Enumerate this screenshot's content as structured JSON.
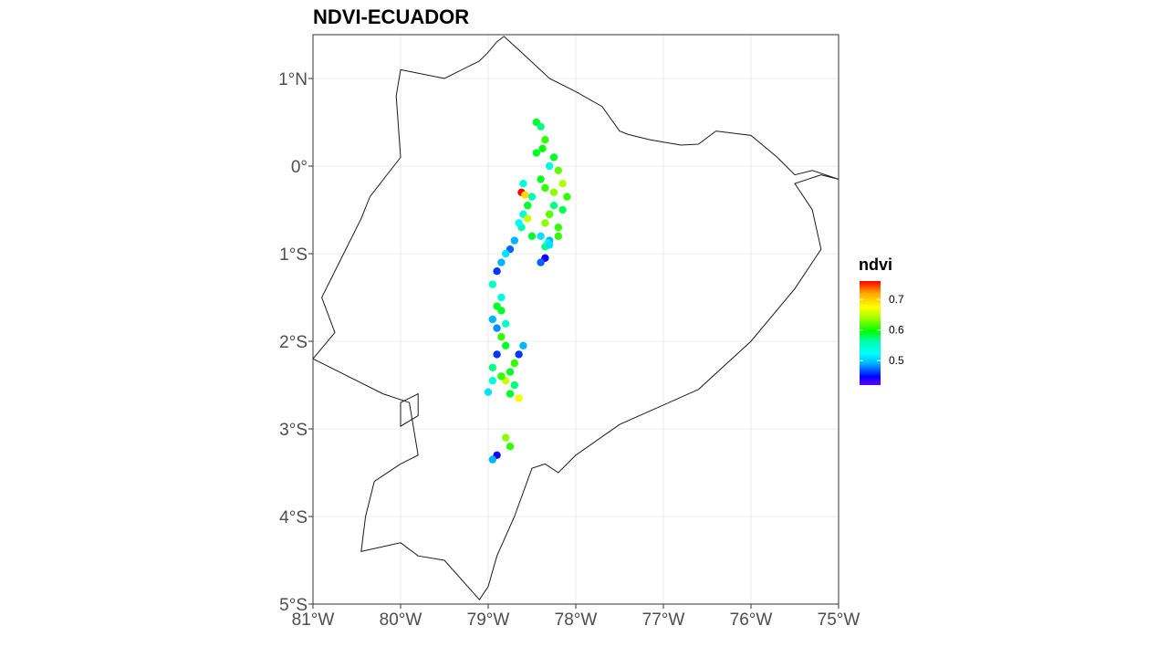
{
  "chart_data": {
    "type": "scatter",
    "title": "NDVI-ECUADOR",
    "xlabel": "",
    "ylabel": "",
    "xlim": [
      -81,
      -75
    ],
    "ylim": [
      -5,
      1.5
    ],
    "x_ticks": [
      -81,
      -80,
      -79,
      -78,
      -77,
      -76,
      -75
    ],
    "x_tick_labels": [
      "81°W",
      "80°W",
      "79°W",
      "78°W",
      "77°W",
      "76°W",
      "75°W"
    ],
    "y_ticks": [
      1,
      0,
      -1,
      -2,
      -3,
      -4,
      -5
    ],
    "y_tick_labels": [
      "1°N",
      "0°",
      "1°S",
      "2°S",
      "3°S",
      "4°S",
      "5°S"
    ],
    "grid": true,
    "legend": {
      "title": "ndvi",
      "placement": "right",
      "range": [
        0.42,
        0.76
      ],
      "breaks": [
        0.7,
        0.6,
        0.5
      ],
      "break_labels": [
        "0.7",
        "0.6",
        "0.5"
      ],
      "colors": [
        "#ff0000",
        "#ffaa00",
        "#ffff00",
        "#aaff00",
        "#00ff00",
        "#00ffaa",
        "#00ffff",
        "#00aaff",
        "#0000ff",
        "#6600ff"
      ]
    },
    "outline": [
      [
        -79.0,
        1.3
      ],
      [
        -78.9,
        1.42
      ],
      [
        -78.82,
        1.48
      ],
      [
        -78.6,
        1.28
      ],
      [
        -78.3,
        1.0
      ],
      [
        -78.0,
        0.85
      ],
      [
        -77.7,
        0.68
      ],
      [
        -77.5,
        0.4
      ],
      [
        -77.4,
        0.36
      ],
      [
        -77.15,
        0.3
      ],
      [
        -76.8,
        0.24
      ],
      [
        -76.6,
        0.25
      ],
      [
        -76.4,
        0.4
      ],
      [
        -76.0,
        0.35
      ],
      [
        -75.7,
        0.1
      ],
      [
        -75.5,
        -0.1
      ],
      [
        -75.3,
        -0.05
      ],
      [
        -75.0,
        -0.15
      ],
      [
        -75.2,
        -0.1
      ],
      [
        -75.5,
        -0.2
      ],
      [
        -75.3,
        -0.5
      ],
      [
        -75.2,
        -0.95
      ],
      [
        -75.5,
        -1.4
      ],
      [
        -76.0,
        -2.0
      ],
      [
        -76.6,
        -2.55
      ],
      [
        -77.5,
        -2.95
      ],
      [
        -78.0,
        -3.3
      ],
      [
        -78.2,
        -3.5
      ],
      [
        -78.35,
        -3.4
      ],
      [
        -78.5,
        -3.45
      ],
      [
        -78.7,
        -4.0
      ],
      [
        -78.9,
        -4.45
      ],
      [
        -79.0,
        -4.8
      ],
      [
        -79.1,
        -4.95
      ],
      [
        -79.5,
        -4.5
      ],
      [
        -79.8,
        -4.45
      ],
      [
        -80.0,
        -4.3
      ],
      [
        -80.45,
        -4.4
      ],
      [
        -80.4,
        -4.0
      ],
      [
        -80.3,
        -3.6
      ],
      [
        -80.0,
        -3.4
      ],
      [
        -79.8,
        -3.3
      ],
      [
        -79.9,
        -2.7
      ],
      [
        -80.2,
        -2.6
      ],
      [
        -80.7,
        -2.35
      ],
      [
        -81.0,
        -2.2
      ],
      [
        -80.75,
        -1.9
      ],
      [
        -80.9,
        -1.5
      ],
      [
        -80.6,
        -0.9
      ],
      [
        -80.45,
        -0.6
      ],
      [
        -80.35,
        -0.35
      ],
      [
        -80.0,
        0.1
      ],
      [
        -80.05,
        0.8
      ],
      [
        -80.0,
        1.1
      ],
      [
        -79.5,
        1.0
      ],
      [
        -79.1,
        1.2
      ],
      [
        -79.0,
        1.3
      ]
    ],
    "island": [
      [
        -80.0,
        -2.7
      ],
      [
        -79.8,
        -2.6
      ],
      [
        -79.8,
        -2.85
      ],
      [
        -80.0,
        -2.97
      ],
      [
        -80.0,
        -2.7
      ]
    ],
    "x": [
      -78.45,
      -78.4,
      -78.35,
      -78.45,
      -78.3,
      -78.38,
      -78.25,
      -78.2,
      -78.15,
      -78.1,
      -78.25,
      -78.3,
      -78.35,
      -78.55,
      -78.6,
      -78.62,
      -78.55,
      -78.5,
      -78.4,
      -78.3,
      -78.2,
      -78.3,
      -78.15,
      -78.25,
      -78.35,
      -78.4,
      -78.5,
      -78.6,
      -78.65,
      -78.7,
      -78.75,
      -78.8,
      -78.85,
      -78.9,
      -78.95,
      -78.85,
      -78.9,
      -78.95,
      -78.9,
      -78.85,
      -78.8,
      -78.9,
      -78.95,
      -78.85,
      -78.8,
      -78.75,
      -78.7,
      -78.65,
      -78.6,
      -78.7,
      -78.75,
      -78.65,
      -78.85,
      -78.95,
      -79.0,
      -78.8,
      -78.75,
      -78.9,
      -78.95,
      -78.8,
      -78.85,
      -78.35,
      -78.32,
      -78.3,
      -78.2,
      -78.35,
      -78.4,
      -78.62,
      -78.58
    ],
    "y": [
      0.5,
      0.45,
      0.3,
      0.15,
      0.0,
      0.2,
      0.1,
      -0.05,
      -0.2,
      -0.35,
      -0.45,
      -0.55,
      -0.65,
      -0.45,
      -0.55,
      -0.7,
      -0.6,
      -0.8,
      -0.8,
      -0.85,
      -0.7,
      -0.55,
      -0.5,
      -0.3,
      -0.25,
      -0.15,
      -0.35,
      -0.2,
      -0.65,
      -0.85,
      -0.95,
      -1.0,
      -1.1,
      -1.2,
      -1.35,
      -1.5,
      -1.6,
      -1.75,
      -1.85,
      -1.95,
      -2.05,
      -2.15,
      -2.3,
      -2.4,
      -2.45,
      -2.35,
      -2.25,
      -2.15,
      -2.05,
      -2.5,
      -2.6,
      -2.65,
      -2.4,
      -2.45,
      -2.58,
      -3.1,
      -3.2,
      -3.3,
      -3.35,
      -1.8,
      -1.65,
      -0.92,
      -0.88,
      -0.9,
      -0.8,
      -1.05,
      -1.1,
      -0.3,
      -0.33
    ],
    "ndvi": [
      0.6,
      0.58,
      0.62,
      0.6,
      0.55,
      0.61,
      0.6,
      0.63,
      0.65,
      0.62,
      0.58,
      0.6,
      0.64,
      0.6,
      0.55,
      0.57,
      0.66,
      0.6,
      0.52,
      0.5,
      0.62,
      0.63,
      0.59,
      0.64,
      0.62,
      0.6,
      0.57,
      0.55,
      0.53,
      0.5,
      0.48,
      0.52,
      0.5,
      0.47,
      0.56,
      0.55,
      0.6,
      0.5,
      0.49,
      0.62,
      0.6,
      0.47,
      0.58,
      0.63,
      0.66,
      0.6,
      0.62,
      0.47,
      0.5,
      0.58,
      0.6,
      0.68,
      0.62,
      0.55,
      0.52,
      0.64,
      0.62,
      0.45,
      0.5,
      0.56,
      0.6,
      0.58,
      0.55,
      0.52,
      0.62,
      0.45,
      0.48,
      0.76,
      0.7
    ]
  }
}
